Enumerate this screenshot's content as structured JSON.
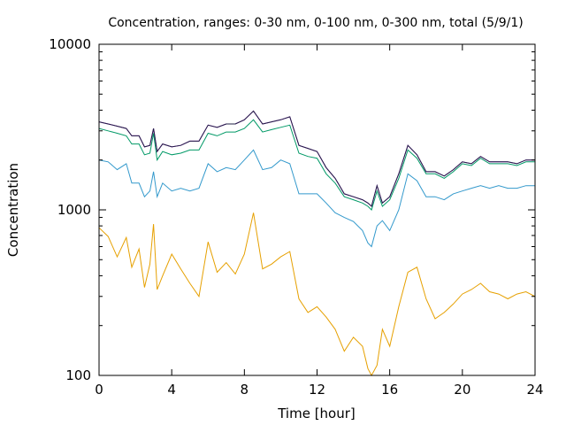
{
  "chart_data": {
    "type": "line",
    "title": "Concentration, ranges: 0-30 nm, 0-100 nm, 0-300 nm, total (5/9/1)",
    "xlabel": "Time [hour]",
    "ylabel": "Concentration",
    "xlim": [
      0,
      24
    ],
    "ylim": [
      100,
      10000
    ],
    "yscale": "log",
    "grid": false,
    "legend": "none",
    "x_ticks": [
      0,
      4,
      8,
      12,
      16,
      20,
      24
    ],
    "x_tick_labels": [
      "0",
      "4",
      "8",
      "12",
      "16",
      "20",
      "24"
    ],
    "y_ticks": [
      100,
      1000,
      10000
    ],
    "y_tick_labels": [
      "100",
      "1000",
      "10000"
    ],
    "colors": [
      "#e6a000",
      "#3399cc",
      "#009966",
      "#9900cc",
      "#222244"
    ],
    "x": [
      0,
      0.5,
      1,
      1.5,
      1.8,
      2.2,
      2.5,
      2.8,
      3.0,
      3.2,
      3.5,
      4,
      4.5,
      5,
      5.5,
      6,
      6.5,
      7,
      7.5,
      8,
      8.5,
      9,
      9.5,
      10,
      10.5,
      11,
      11.5,
      12,
      12.5,
      13,
      13.5,
      14,
      14.5,
      14.8,
      15,
      15.3,
      15.6,
      16,
      16.5,
      17,
      17.5,
      18,
      18.5,
      19,
      19.5,
      20,
      20.5,
      21,
      21.5,
      22,
      22.5,
      23,
      23.5,
      24
    ],
    "series": [
      {
        "values": [
          780,
          690,
          520,
          680,
          450,
          580,
          340,
          470,
          820,
          330,
          400,
          540,
          440,
          360,
          300,
          640,
          420,
          480,
          410,
          540,
          960,
          440,
          470,
          520,
          560,
          290,
          240,
          260,
          225,
          190,
          140,
          170,
          150,
          110,
          100,
          115,
          190,
          150,
          260,
          420,
          450,
          290,
          220,
          240,
          270,
          310,
          330,
          360,
          320,
          310,
          290,
          310,
          320,
          300
        ]
      },
      {
        "values": [
          2000,
          1950,
          1750,
          1900,
          1450,
          1450,
          1200,
          1300,
          1700,
          1200,
          1450,
          1300,
          1350,
          1300,
          1350,
          1900,
          1700,
          1800,
          1750,
          2000,
          2300,
          1750,
          1800,
          2000,
          1900,
          1250,
          1250,
          1250,
          1100,
          960,
          900,
          850,
          750,
          630,
          600,
          800,
          860,
          750,
          1000,
          1650,
          1500,
          1200,
          1200,
          1150,
          1250,
          1300,
          1350,
          1400,
          1350,
          1400,
          1350,
          1350,
          1400,
          1400
        ]
      },
      {
        "values": [
          3100,
          3000,
          2900,
          2800,
          2500,
          2500,
          2150,
          2200,
          2900,
          2000,
          2250,
          2150,
          2200,
          2300,
          2300,
          2900,
          2800,
          2950,
          2950,
          3100,
          3500,
          2950,
          3050,
          3150,
          3250,
          2200,
          2100,
          2050,
          1650,
          1450,
          1200,
          1150,
          1100,
          1050,
          1000,
          1300,
          1050,
          1150,
          1550,
          2300,
          2050,
          1650,
          1650,
          1550,
          1700,
          1900,
          1850,
          2050,
          1900,
          1900,
          1900,
          1850,
          1950,
          1950
        ]
      },
      {
        "values": [
          3400,
          3300,
          3200,
          3100,
          2800,
          2800,
          2400,
          2450,
          3100,
          2250,
          2500,
          2400,
          2450,
          2600,
          2600,
          3250,
          3150,
          3300,
          3300,
          3500,
          3950,
          3300,
          3400,
          3500,
          3650,
          2450,
          2350,
          2250,
          1800,
          1550,
          1250,
          1200,
          1150,
          1100,
          1050,
          1400,
          1100,
          1200,
          1650,
          2450,
          2150,
          1700,
          1700,
          1600,
          1750,
          1950,
          1900,
          2100,
          1950,
          1950,
          1950,
          1900,
          2000,
          2000
        ]
      },
      {
        "values": [
          3400,
          3300,
          3200,
          3100,
          2800,
          2800,
          2400,
          2450,
          3100,
          2250,
          2500,
          2400,
          2450,
          2600,
          2600,
          3250,
          3150,
          3300,
          3300,
          3500,
          3950,
          3300,
          3400,
          3500,
          3650,
          2450,
          2350,
          2250,
          1800,
          1550,
          1250,
          1200,
          1150,
          1100,
          1050,
          1400,
          1100,
          1200,
          1650,
          2450,
          2150,
          1700,
          1700,
          1600,
          1750,
          1950,
          1900,
          2100,
          1950,
          1950,
          1950,
          1900,
          2000,
          2000
        ]
      }
    ]
  }
}
